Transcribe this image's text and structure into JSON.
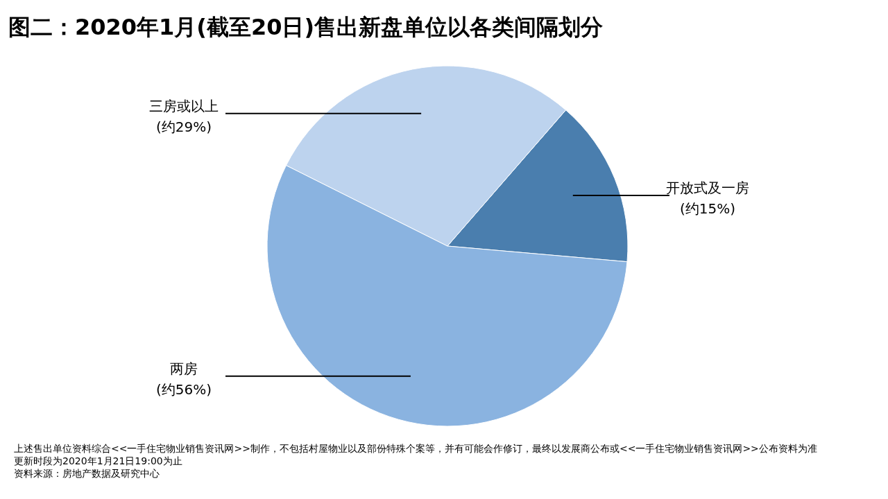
{
  "chart_data": {
    "type": "pie",
    "title": "图二：2020年1月(截至20日)售出新盘单位以各类间隔划分",
    "categories": [
      "开放式及一房",
      "两房",
      "三房或以上"
    ],
    "values": [
      15,
      56,
      29
    ],
    "colors": [
      "#4a7eae",
      "#8ab3e0",
      "#bdd3ee"
    ],
    "value_labels": [
      "(约15%)",
      "(约56%)",
      "(约29%)"
    ],
    "annotations": [
      "上述售出单位资料综合<<一手住宅物业销售资讯网>>制作，不包括村屋物业以及部份特殊个案等，并有可能会作修订，最终以发展商公布或<<一手住宅物业销售资讯网>>公布资料为准",
      "更新时段为2020年1月21日19:00为止",
      "资料来源：房地产数据及研究中心"
    ]
  }
}
